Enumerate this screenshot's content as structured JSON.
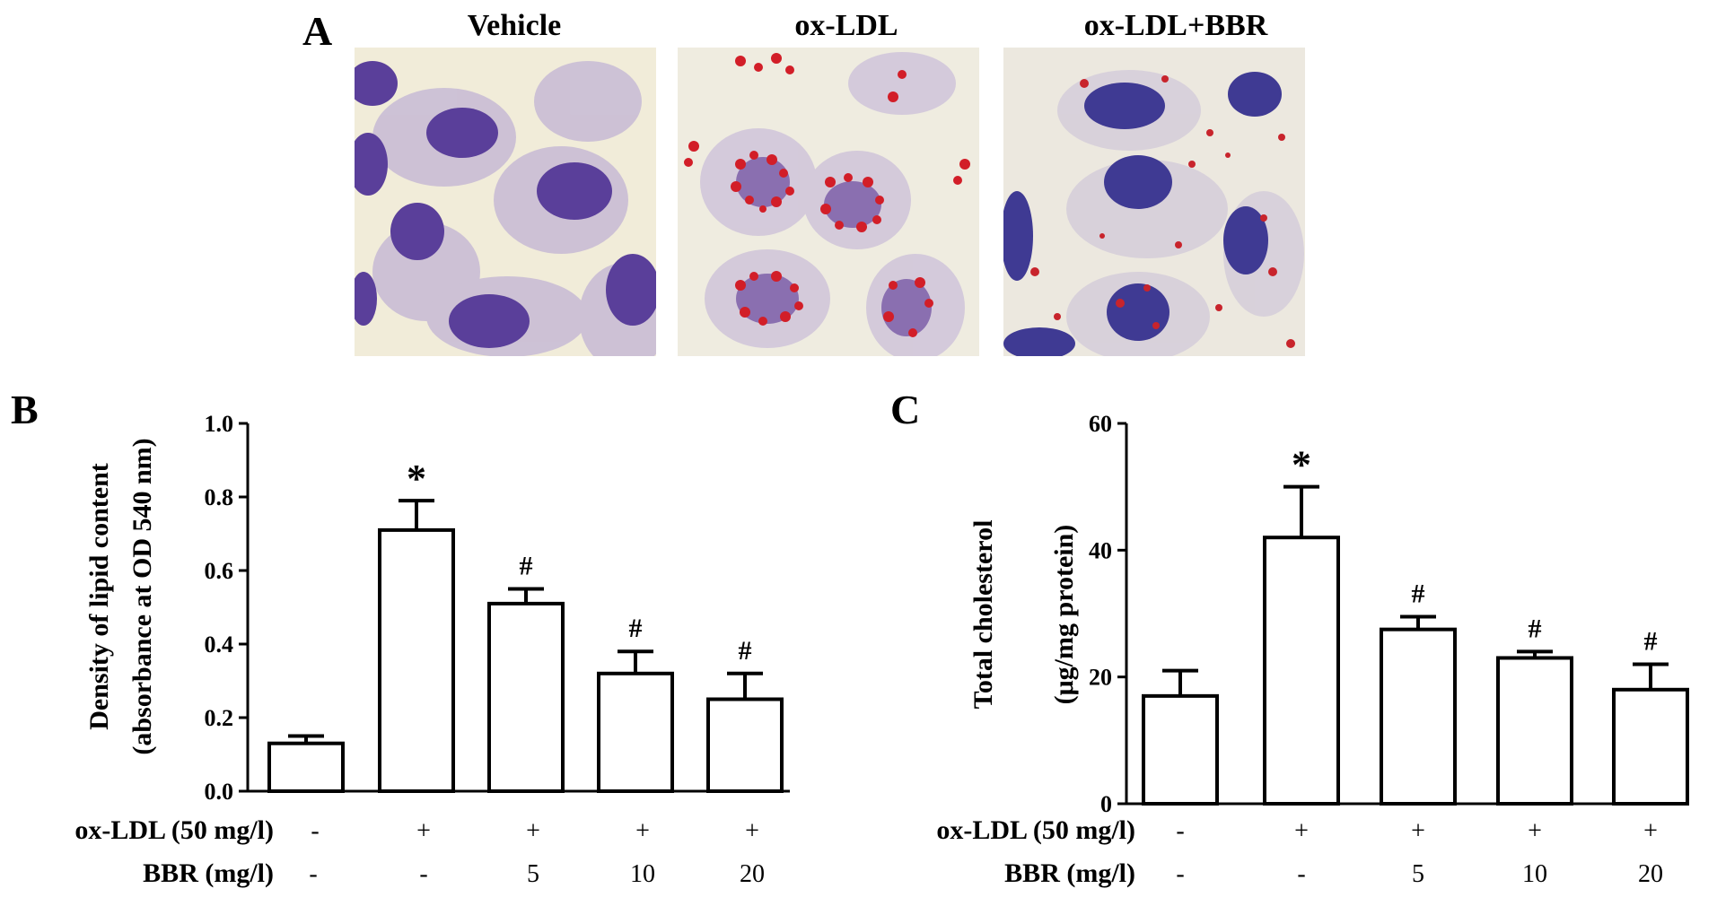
{
  "panel_a": {
    "letter": "A",
    "images": [
      {
        "title": "Vehicle"
      },
      {
        "title": "ox-LDL"
      },
      {
        "title": "ox-LDL+BBR"
      }
    ]
  },
  "treatment_rows": {
    "row1_label": "ox-LDL (50 mg/l)",
    "row1_values": [
      "-",
      "+",
      "+",
      "+",
      "+"
    ],
    "row2_label": "BBR (mg/l)",
    "row2_values": [
      "-",
      "-",
      "5",
      "10",
      "20"
    ]
  },
  "chart_data": [
    {
      "panel": "B",
      "type": "bar",
      "categories": [
        "1",
        "2",
        "3",
        "4",
        "5"
      ],
      "values": [
        0.13,
        0.71,
        0.51,
        0.32,
        0.25
      ],
      "errors": [
        0.02,
        0.08,
        0.04,
        0.06,
        0.07
      ],
      "annotations": [
        "",
        "*",
        "#",
        "#",
        "#"
      ],
      "ylabel_line1": "Density of lipid content",
      "ylabel_line2": "(absorbance at OD 540 nm)",
      "ylim": [
        0,
        1.0
      ],
      "yticks": [
        "0.0",
        "0.2",
        "0.4",
        "0.6",
        "0.8",
        "1.0"
      ],
      "bar_fill": "#ffffff",
      "bar_stroke": "#000000"
    },
    {
      "panel": "C",
      "type": "bar",
      "categories": [
        "1",
        "2",
        "3",
        "4",
        "5"
      ],
      "values": [
        17,
        42,
        27.5,
        23,
        18
      ],
      "errors": [
        4,
        8,
        2,
        1,
        4
      ],
      "annotations": [
        "",
        "*",
        "#",
        "#",
        "#"
      ],
      "ylabel_line1": "Total cholesterol",
      "ylabel_line2": "(μg/mg protein)",
      "ylim": [
        0,
        60
      ],
      "yticks": [
        "0",
        "20",
        "40",
        "60"
      ],
      "bar_fill": "#ffffff",
      "bar_stroke": "#000000"
    }
  ],
  "stain_colors": {
    "background": "#f1ecd9",
    "nucleus": "#4b3a8f",
    "cytoplasm": "#8b7bb8",
    "lipid": "#d21e28"
  }
}
